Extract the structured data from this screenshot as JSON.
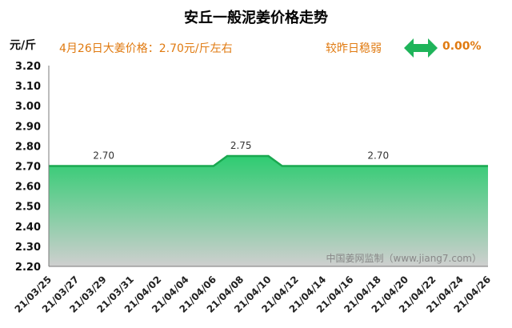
{
  "header": {
    "title": "安丘一般泥姜价格走势",
    "unit_label": "元/斤",
    "price_note": "4月26日大姜价格：2.70元/斤左右",
    "change_text": "较昨日稳弱",
    "change_value": "0.00%"
  },
  "watermark": "中国姜网监制（www.jiang7.com）",
  "icons": {
    "trend": "double-arrow-icon"
  },
  "colors": {
    "accent": "#e07a10",
    "fill_top": "#2ecc71",
    "fill_bottom": "#cfcfcf",
    "arrow": "#1fb45a"
  },
  "chart_data": {
    "type": "area",
    "title": "安丘一般泥姜价格走势",
    "ylabel": "元/斤",
    "ylim": [
      2.2,
      3.2
    ],
    "yticks": [
      "3.20",
      "3.10",
      "3.00",
      "2.90",
      "2.80",
      "2.70",
      "2.60",
      "2.50",
      "2.40",
      "2.30",
      "2.20"
    ],
    "xticks": [
      "21/03/25",
      "21/03/27",
      "21/03/29",
      "21/03/31",
      "21/04/02",
      "21/04/04",
      "21/04/06",
      "21/04/08",
      "21/04/10",
      "21/04/12",
      "21/04/14",
      "21/04/16",
      "21/04/18",
      "21/04/20",
      "21/04/22",
      "21/04/24",
      "21/04/26"
    ],
    "x": [
      "21/03/25",
      "21/03/26",
      "21/03/27",
      "21/03/28",
      "21/03/29",
      "21/03/30",
      "21/03/31",
      "21/04/01",
      "21/04/02",
      "21/04/03",
      "21/04/04",
      "21/04/05",
      "21/04/06",
      "21/04/07",
      "21/04/08",
      "21/04/09",
      "21/04/10",
      "21/04/11",
      "21/04/12",
      "21/04/13",
      "21/04/14",
      "21/04/15",
      "21/04/16",
      "21/04/17",
      "21/04/18",
      "21/04/19",
      "21/04/20",
      "21/04/21",
      "21/04/22",
      "21/04/23",
      "21/04/24",
      "21/04/25",
      "21/04/26"
    ],
    "values": [
      2.7,
      2.7,
      2.7,
      2.7,
      2.7,
      2.7,
      2.7,
      2.7,
      2.7,
      2.7,
      2.7,
      2.7,
      2.7,
      2.75,
      2.75,
      2.75,
      2.75,
      2.7,
      2.7,
      2.7,
      2.7,
      2.7,
      2.7,
      2.7,
      2.7,
      2.7,
      2.7,
      2.7,
      2.7,
      2.7,
      2.7,
      2.7,
      2.7
    ],
    "data_labels": [
      {
        "x": "21/03/29",
        "text": "2.70"
      },
      {
        "x": "21/04/08",
        "text": "2.75"
      },
      {
        "x": "21/04/18",
        "text": "2.70"
      }
    ],
    "grid": false
  }
}
